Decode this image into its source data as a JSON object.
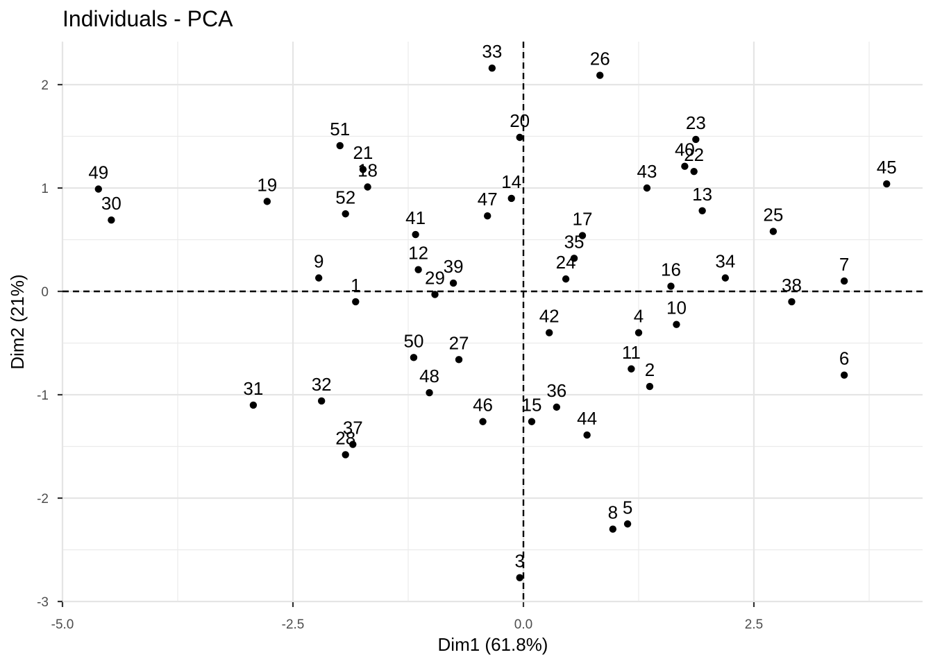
{
  "chart_data": {
    "type": "scatter",
    "title": "Individuals - PCA",
    "xlabel": "Dim1 (61.8%)",
    "ylabel": "Dim2 (21%)",
    "xlim": [
      -5.0,
      4.3
    ],
    "ylim": [
      -3.0,
      2.4
    ],
    "x_ticks": [
      -5.0,
      -2.5,
      0.0,
      2.5
    ],
    "x_tick_labels": [
      "-5.0",
      "-2.5",
      "0.0",
      "2.5"
    ],
    "y_ticks": [
      2,
      1,
      0,
      -1,
      -2,
      -3
    ],
    "y_tick_labels": [
      "2",
      "1",
      "0",
      "-1",
      "-2",
      "-3"
    ],
    "grid": true,
    "reference_lines": {
      "x": 0,
      "y": 0,
      "style": "dashed"
    },
    "point_color": "#000000",
    "points": [
      {
        "label": "1",
        "x": -1.82,
        "y": -0.1
      },
      {
        "label": "2",
        "x": 1.37,
        "y": -0.92
      },
      {
        "label": "3",
        "x": -0.04,
        "y": -2.77
      },
      {
        "label": "4",
        "x": 1.25,
        "y": -0.4
      },
      {
        "label": "5",
        "x": 1.13,
        "y": -2.25
      },
      {
        "label": "6",
        "x": 3.48,
        "y": -0.81
      },
      {
        "label": "7",
        "x": 3.48,
        "y": 0.1
      },
      {
        "label": "8",
        "x": 0.97,
        "y": -2.3
      },
      {
        "label": "9",
        "x": -2.22,
        "y": 0.13
      },
      {
        "label": "10",
        "x": 1.66,
        "y": -0.32
      },
      {
        "label": "11",
        "x": 1.17,
        "y": -0.75
      },
      {
        "label": "12",
        "x": -1.14,
        "y": 0.21
      },
      {
        "label": "13",
        "x": 1.94,
        "y": 0.78
      },
      {
        "label": "14",
        "x": -0.13,
        "y": 0.9
      },
      {
        "label": "15",
        "x": 0.09,
        "y": -1.26
      },
      {
        "label": "16",
        "x": 1.6,
        "y": 0.05
      },
      {
        "label": "17",
        "x": 0.64,
        "y": 0.54
      },
      {
        "label": "18",
        "x": -1.69,
        "y": 1.01
      },
      {
        "label": "19",
        "x": -2.78,
        "y": 0.87
      },
      {
        "label": "20",
        "x": -0.04,
        "y": 1.49
      },
      {
        "label": "21",
        "x": -1.74,
        "y": 1.18
      },
      {
        "label": "22",
        "x": 1.85,
        "y": 1.16
      },
      {
        "label": "23",
        "x": 1.87,
        "y": 1.47
      },
      {
        "label": "24",
        "x": 0.46,
        "y": 0.12
      },
      {
        "label": "25",
        "x": 2.71,
        "y": 0.58
      },
      {
        "label": "26",
        "x": 0.83,
        "y": 2.09
      },
      {
        "label": "27",
        "x": -0.7,
        "y": -0.66
      },
      {
        "label": "28",
        "x": -1.93,
        "y": -1.58
      },
      {
        "label": "29",
        "x": -0.96,
        "y": -0.03
      },
      {
        "label": "30",
        "x": -4.47,
        "y": 0.69
      },
      {
        "label": "31",
        "x": -2.93,
        "y": -1.1
      },
      {
        "label": "32",
        "x": -2.19,
        "y": -1.06
      },
      {
        "label": "33",
        "x": -0.34,
        "y": 2.16
      },
      {
        "label": "34",
        "x": 2.19,
        "y": 0.13
      },
      {
        "label": "35",
        "x": 0.55,
        "y": 0.32
      },
      {
        "label": "36",
        "x": 0.36,
        "y": -1.12
      },
      {
        "label": "37",
        "x": -1.85,
        "y": -1.48
      },
      {
        "label": "38",
        "x": 2.91,
        "y": -0.1
      },
      {
        "label": "39",
        "x": -0.76,
        "y": 0.08
      },
      {
        "label": "40",
        "x": 1.75,
        "y": 1.21
      },
      {
        "label": "41",
        "x": -1.17,
        "y": 0.55
      },
      {
        "label": "42",
        "x": 0.28,
        "y": -0.4
      },
      {
        "label": "43",
        "x": 1.34,
        "y": 1.0
      },
      {
        "label": "44",
        "x": 0.69,
        "y": -1.39
      },
      {
        "label": "45",
        "x": 3.94,
        "y": 1.04
      },
      {
        "label": "46",
        "x": -0.44,
        "y": -1.26
      },
      {
        "label": "47",
        "x": -0.39,
        "y": 0.73
      },
      {
        "label": "48",
        "x": -1.02,
        "y": -0.98
      },
      {
        "label": "49",
        "x": -4.61,
        "y": 0.99
      },
      {
        "label": "50",
        "x": -1.19,
        "y": -0.64
      },
      {
        "label": "51",
        "x": -1.99,
        "y": 1.41
      },
      {
        "label": "52",
        "x": -1.93,
        "y": 0.75
      }
    ]
  }
}
